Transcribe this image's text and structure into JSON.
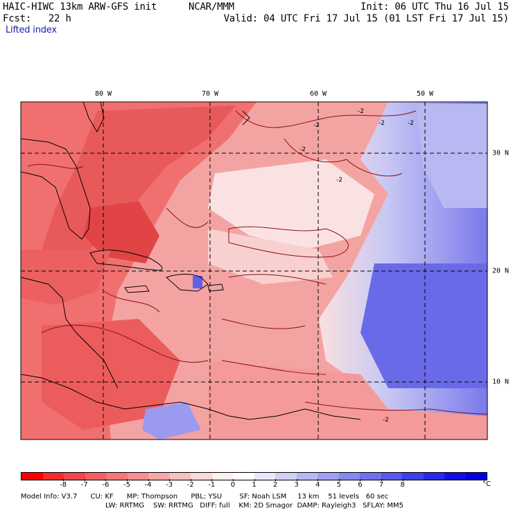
{
  "header": {
    "model_title": "HAIC-HIWC 13km ARW-GFS init",
    "org": "NCAR/MMM",
    "fcst_line": "Fcst:   22 h",
    "field_name": "Lifted index",
    "init_line": "Init: 06 UTC Thu 16 Jul 15",
    "valid_line": "Valid: 04 UTC Fri 17 Jul 15 (01 LST Fri 17 Jul 15)"
  },
  "map": {
    "lon_labels": [
      "80 W",
      "70 W",
      "60 W",
      "50 W"
    ],
    "lat_labels": [
      "30 N",
      "20 N",
      "10 N"
    ],
    "contour_labels": [
      "-2",
      "-2",
      "-2",
      "-2",
      "-2",
      "-2",
      "-2"
    ],
    "colors": {
      "ocean_base": "#f4a3a3",
      "very_unstable": "#e84848",
      "unstable": "#f07070",
      "neutral": "#fbe0e0",
      "stable": "#c8c8f4",
      "very_stable": "#7a7aec",
      "contour": "#8b1010",
      "coast": "#000000",
      "grid": "#000000"
    }
  },
  "legend": {
    "colors": [
      "#ff0000",
      "#f52a2a",
      "#f04848",
      "#f06060",
      "#f27878",
      "#f49090",
      "#f6a8a8",
      "#f8c0c0",
      "#fad8d8",
      "#fdf0f0",
      "#ffffff",
      "#e8e8fa",
      "#d0d0f6",
      "#b8b8f4",
      "#a0a0f2",
      "#8888f0",
      "#7070ee",
      "#5858ec",
      "#4040ea",
      "#2828e8",
      "#1010e6",
      "#0000e0"
    ],
    "ticks": [
      "-8",
      "-7",
      "-6",
      "-5",
      "-4",
      "-3",
      "-2",
      "-1",
      "0",
      "1",
      "2",
      "3",
      "4",
      "5",
      "6",
      "7",
      "8"
    ],
    "unit": "°C"
  },
  "footer": {
    "line1": "Model Info: V3.7      CU: KF      MP: Thompson      PBL: YSU        SF: Noah LSM     13 km    51 levels   60 sec",
    "line2": "LW: RRTMG    SW: RRTMG   DIFF: full    KM: 2D Smagor  DAMP: Rayleigh3   SFLAY: MM5"
  }
}
